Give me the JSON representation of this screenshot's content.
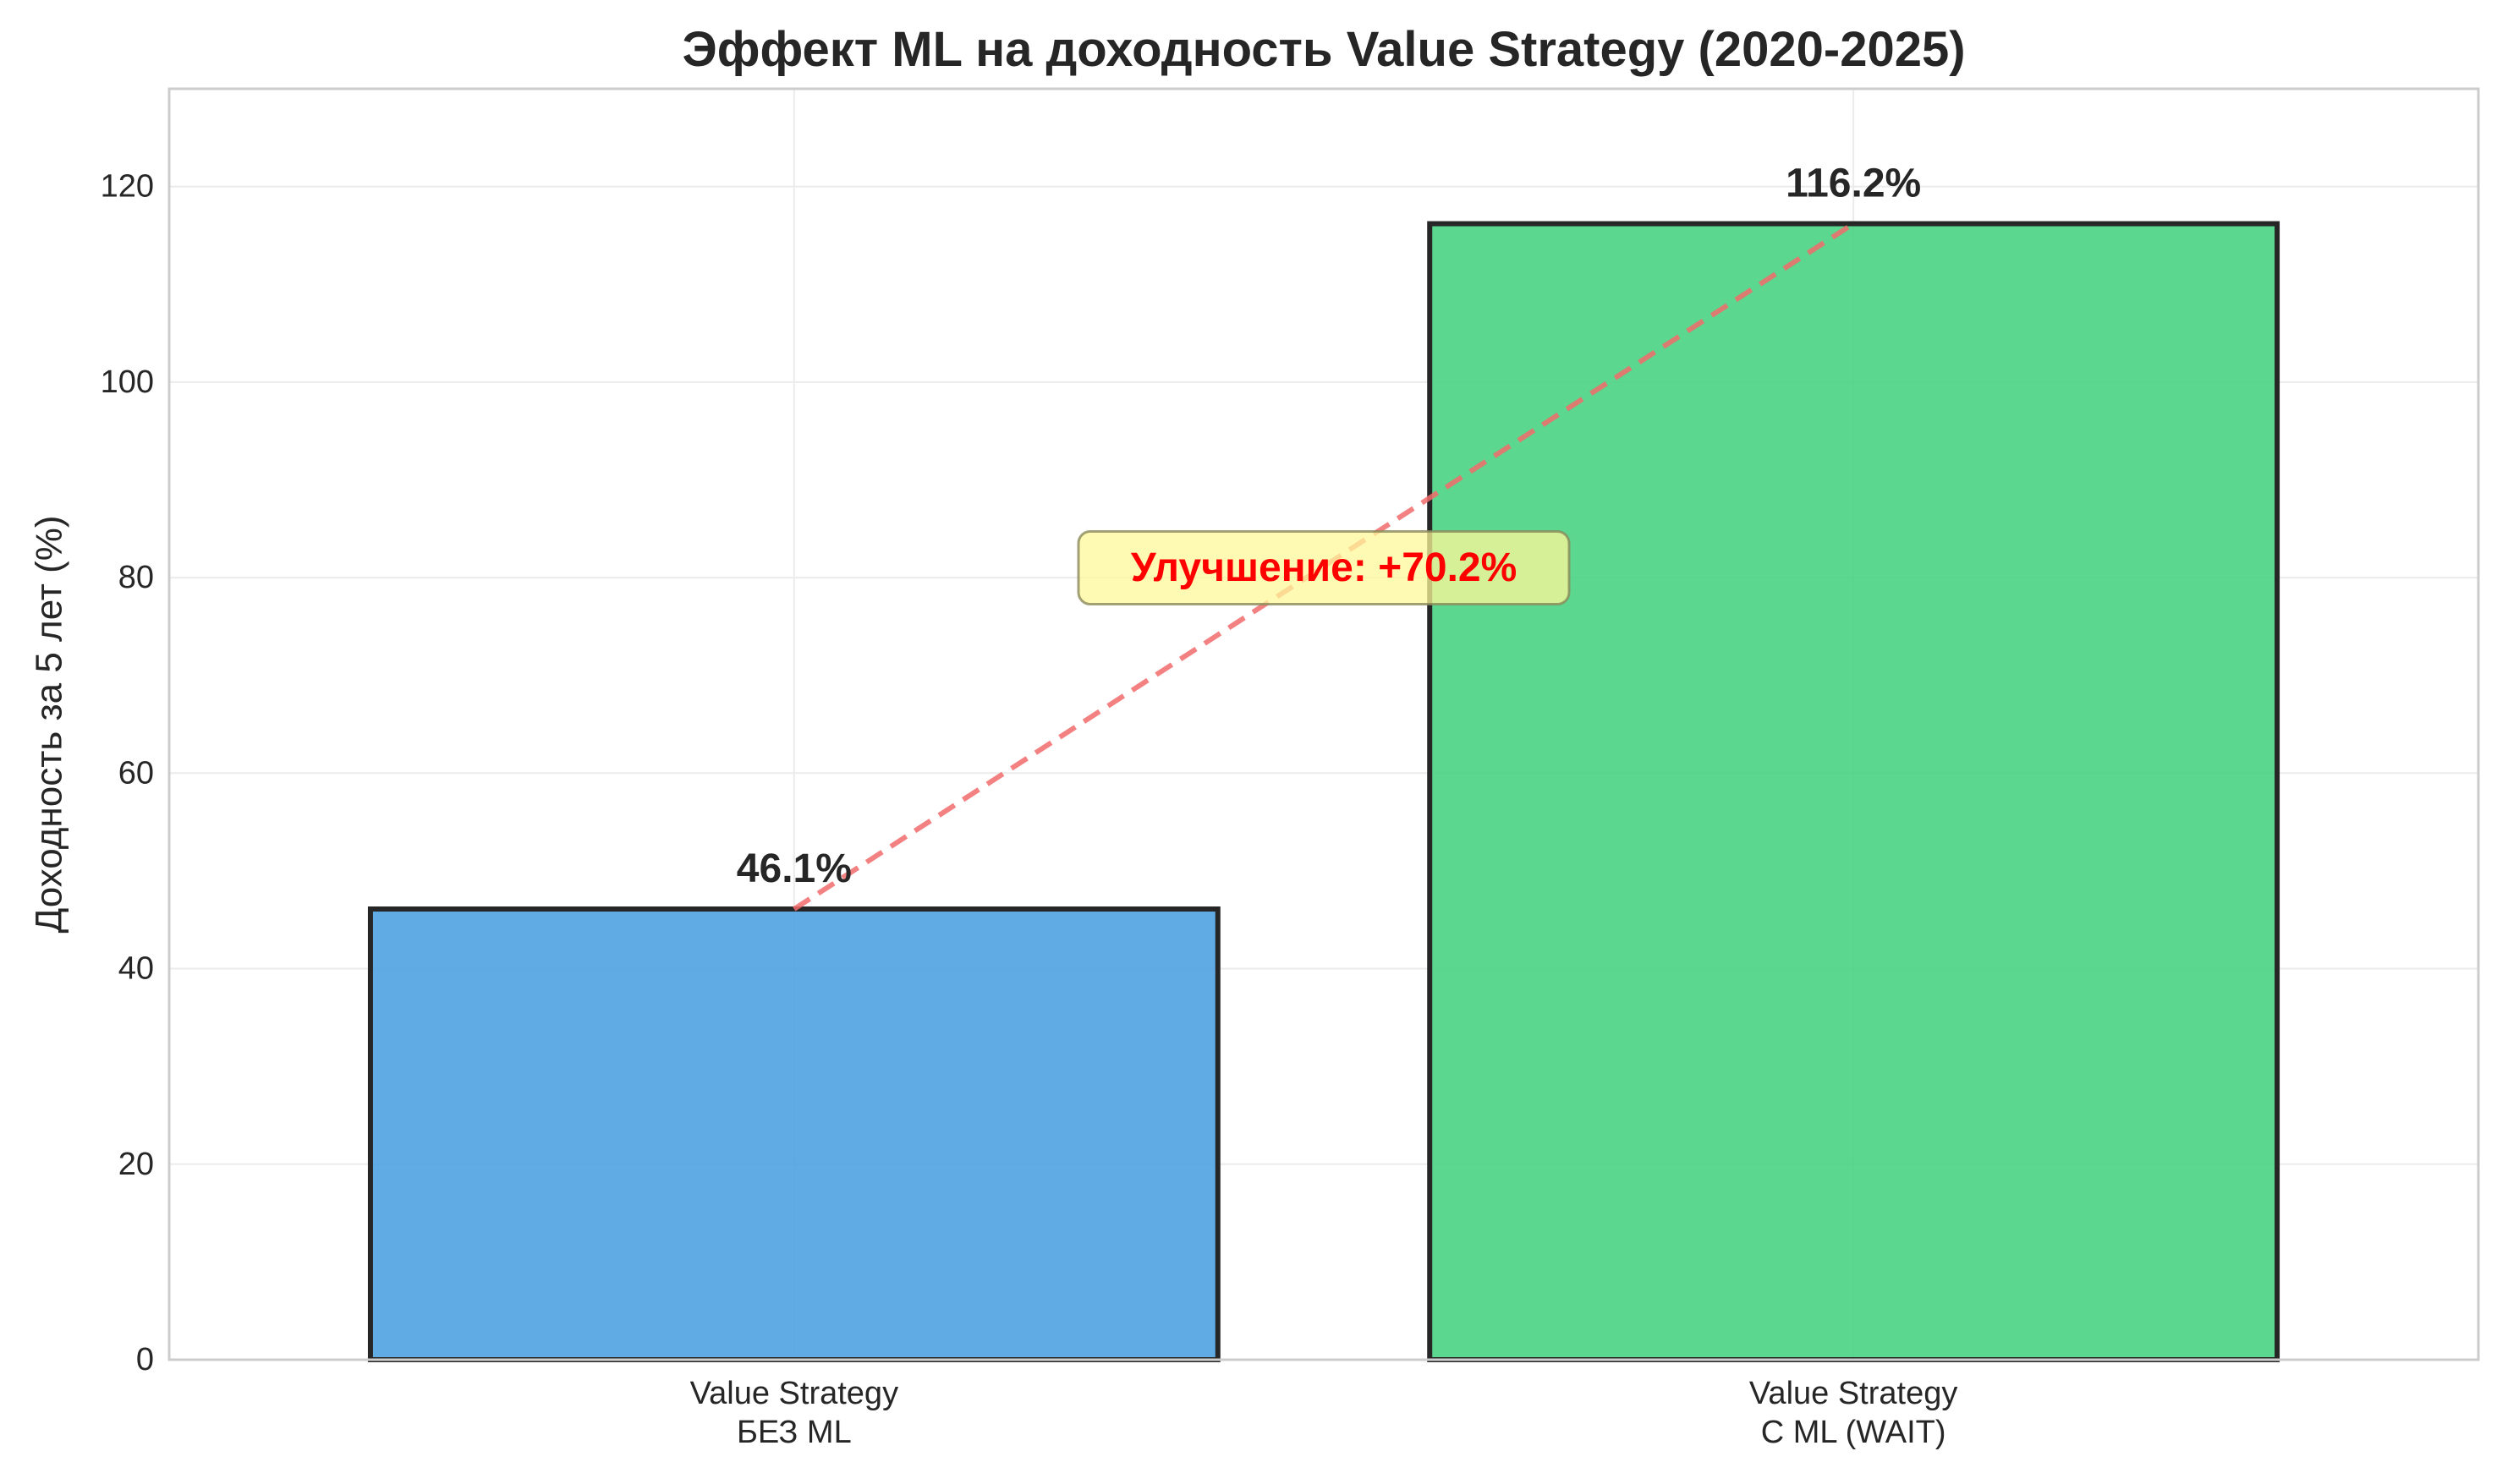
{
  "chart_data": {
    "type": "bar",
    "title": "Эффект ML на доходность Value Strategy (2020-2025)",
    "ylabel": "Доходность за 5 лет (%)",
    "xlabel": "",
    "categories": [
      [
        "Value Strategy",
        "БЕЗ ML"
      ],
      [
        "Value Strategy",
        "С ML (WAIT)"
      ]
    ],
    "values": [
      46.1,
      116.2
    ],
    "value_labels": [
      "46.1%",
      "116.2%"
    ],
    "bar_colors": [
      "#4a9fe0",
      "#46d17f"
    ],
    "bar_edge_color": "#262626",
    "ylim": [
      0,
      130
    ],
    "yticks": [
      0,
      20,
      40,
      60,
      80,
      100,
      120
    ],
    "grid": true,
    "connector": {
      "style": "dashed",
      "color": "#f26b6b"
    },
    "annotation": {
      "text": "Улучшение: +70.2%",
      "value": 81,
      "color": "#ff0000",
      "box_color": "#fff89a"
    }
  }
}
